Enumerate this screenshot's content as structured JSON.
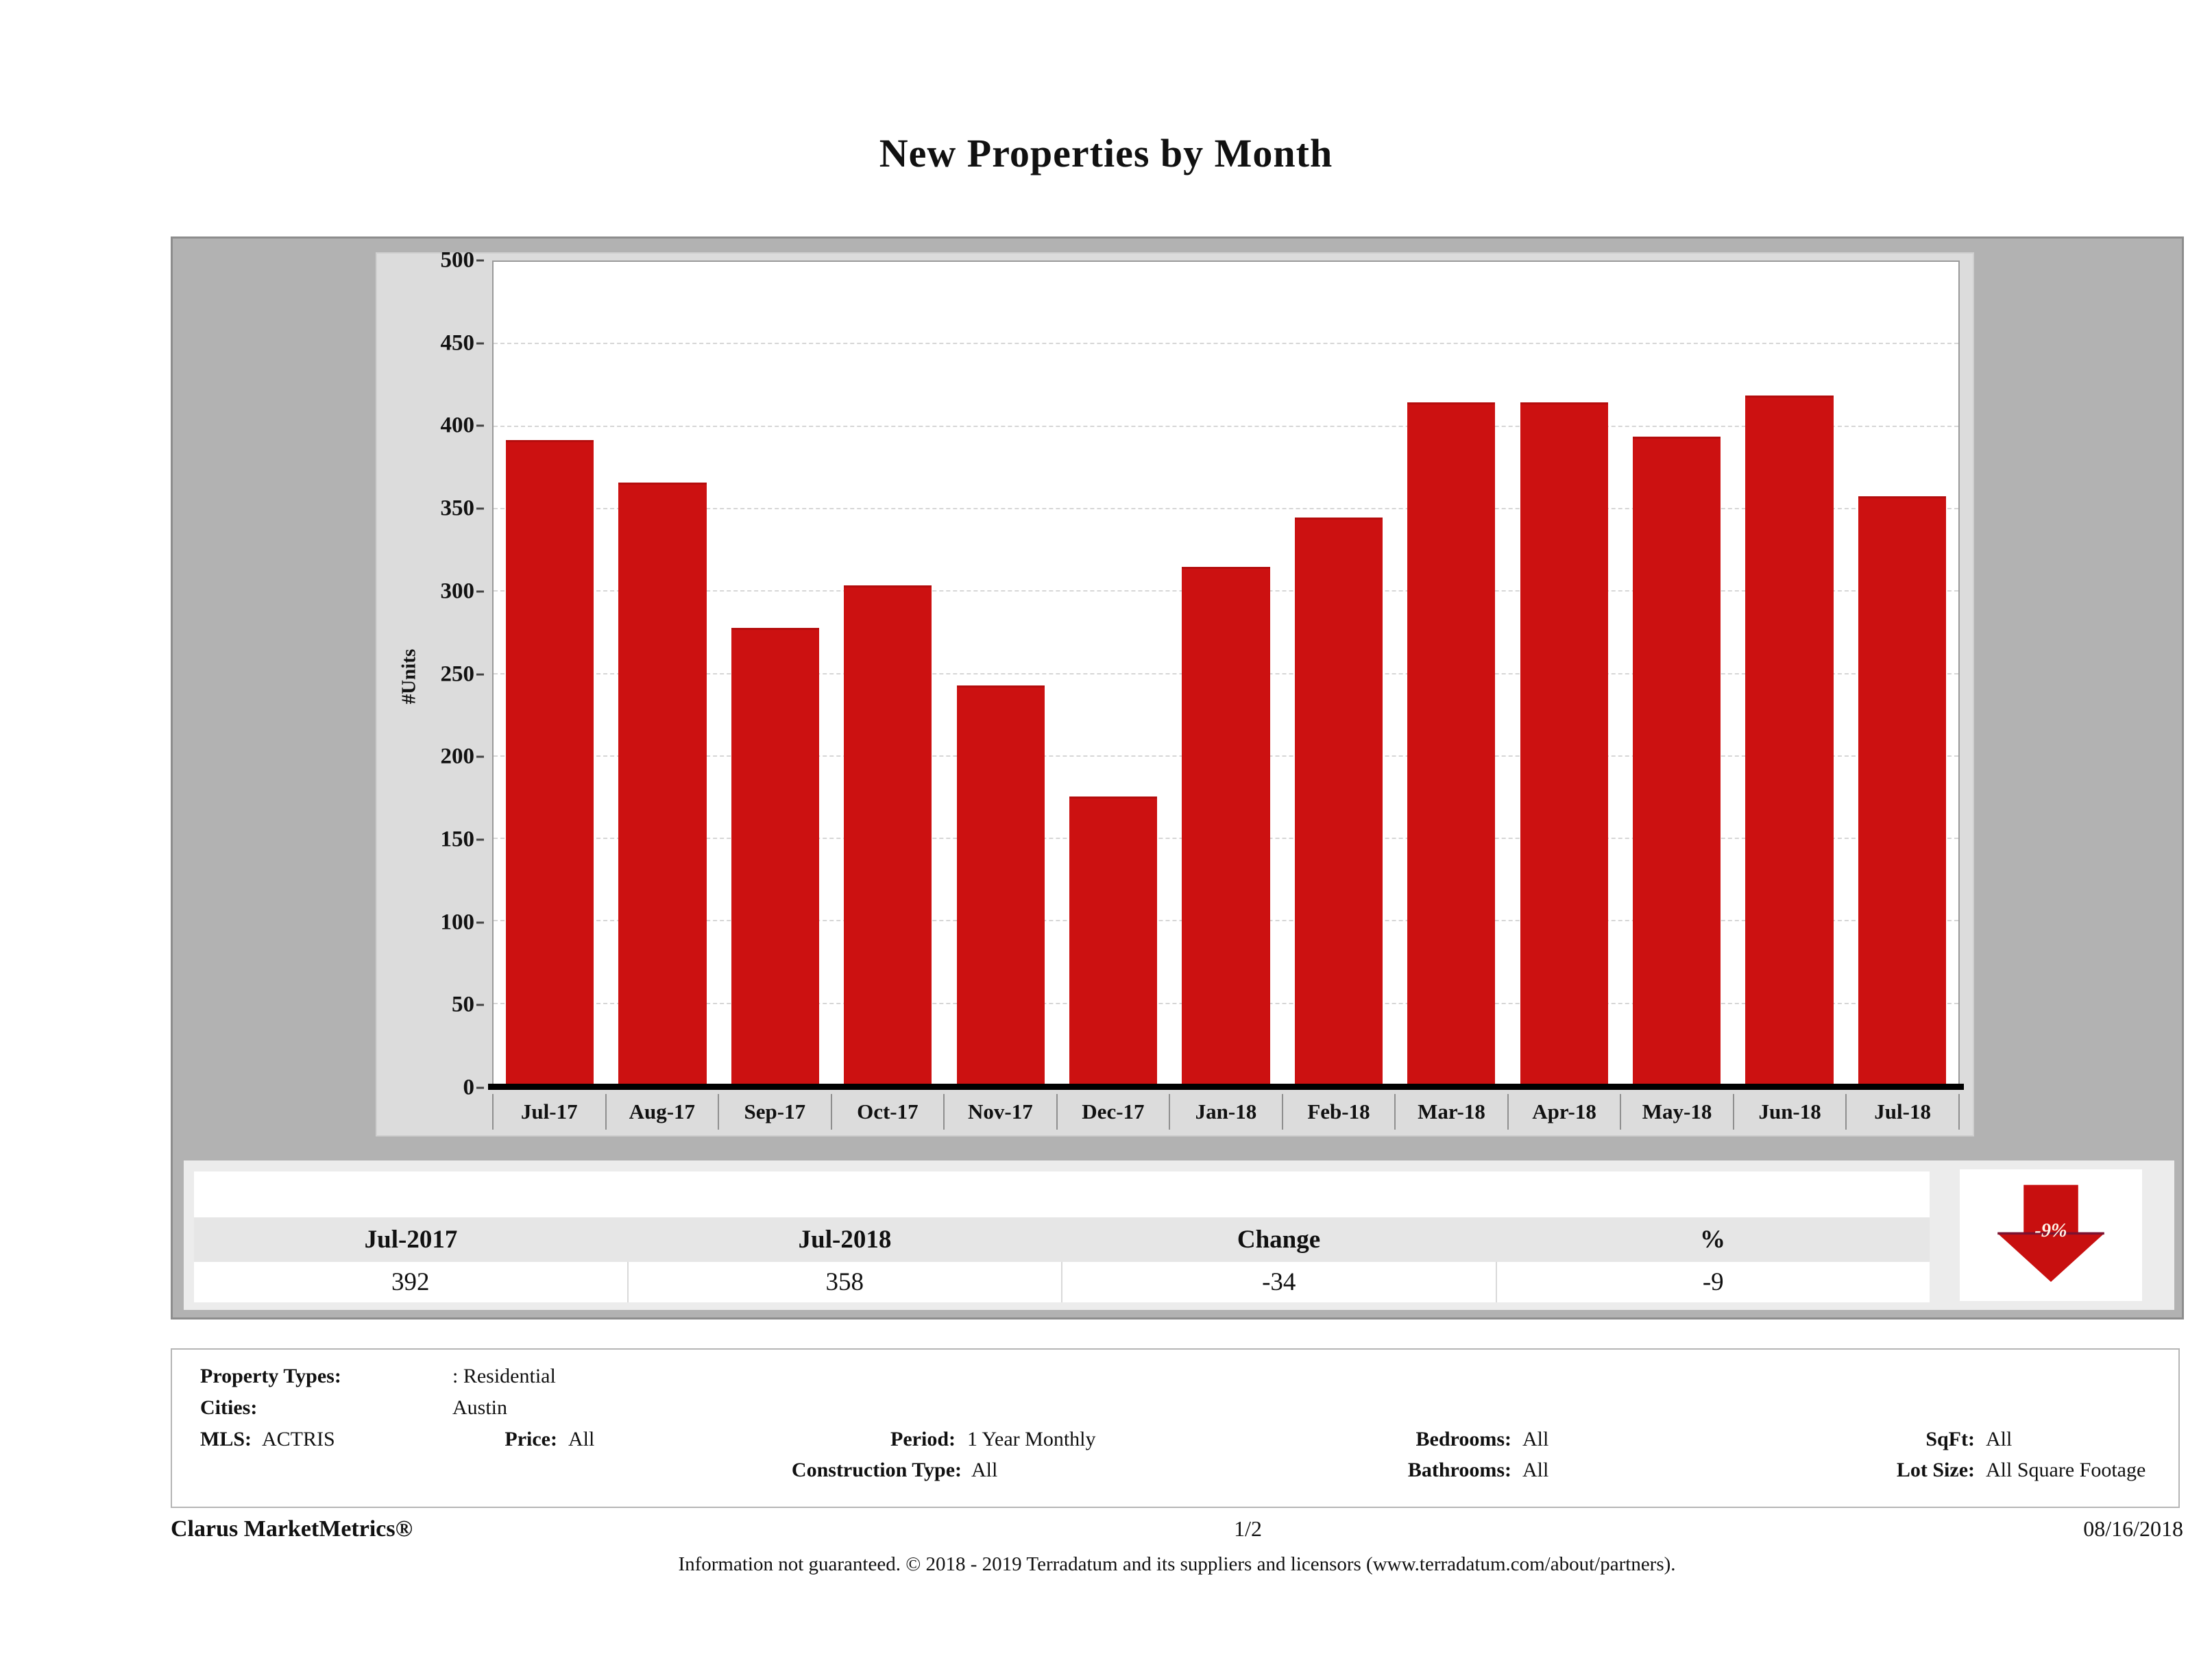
{
  "title": "New Properties by Month",
  "chart_data": {
    "type": "bar",
    "title": "New Properties by Month",
    "xlabel": "",
    "ylabel": "#Units",
    "categories": [
      "Jul-17",
      "Aug-17",
      "Sep-17",
      "Oct-17",
      "Nov-17",
      "Dec-17",
      "Jan-18",
      "Feb-18",
      "Mar-18",
      "Apr-18",
      "May-18",
      "Jun-18",
      "Jul-18"
    ],
    "values": [
      392,
      366,
      278,
      304,
      243,
      176,
      315,
      345,
      415,
      415,
      394,
      419,
      358
    ],
    "ylim": [
      0,
      500
    ],
    "ytick_step": 50,
    "bar_color": "#cc1111",
    "grid": "horizontal-dashed",
    "legend": "none"
  },
  "summary_table": {
    "headers": [
      "Jul-2017",
      "Jul-2018",
      "Change",
      "%"
    ],
    "values": [
      "392",
      "358",
      "-34",
      "-9"
    ],
    "arrow": {
      "label": "-9%",
      "direction": "down",
      "color": "#c80f0f"
    }
  },
  "filters": {
    "property_types_label": "Property Types:",
    "property_types_value": ": Residential",
    "cities_label": "Cities:",
    "cities_value": "Austin",
    "mls_label": "MLS:",
    "mls_value": "ACTRIS",
    "price_label": "Price:",
    "price_value": "All",
    "period_label": "Period:",
    "period_value": "1 Year Monthly",
    "construction_label": "Construction Type:",
    "construction_value": "All",
    "bedrooms_label": "Bedrooms:",
    "bedrooms_value": "All",
    "bathrooms_label": "Bathrooms:",
    "bathrooms_value": "All",
    "sqft_label": "SqFt:",
    "sqft_value": "All",
    "lotsize_label": "Lot Size:",
    "lotsize_value": "All Square Footage"
  },
  "footer": {
    "brand": "Clarus MarketMetrics®",
    "page": "1/2",
    "date": "08/16/2018",
    "disclaimer": "Information not guaranteed. © 2018 - 2019 Terradatum and its suppliers and licensors (www.terradatum.com/about/partners)."
  }
}
